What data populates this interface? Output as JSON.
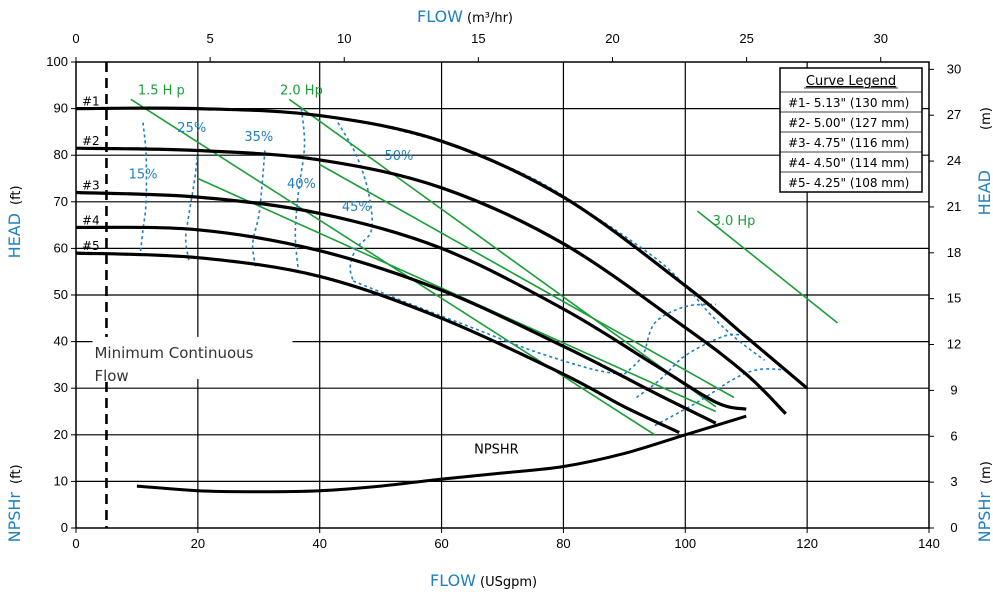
{
  "chart_data": {
    "type": "line",
    "x_top": {
      "title": "FLOW",
      "unit": "(m³/hr)",
      "ticks": [
        "0",
        "5",
        "10",
        "15",
        "20",
        "25",
        "30"
      ],
      "range": [
        0,
        31.8
      ]
    },
    "x_bottom": {
      "title": "FLOW",
      "unit": "(USgpm)",
      "ticks": [
        "0",
        "20",
        "40",
        "60",
        "80",
        "100",
        "120",
        "140"
      ],
      "range": [
        0,
        140
      ]
    },
    "y_left": {
      "title_head": "HEAD",
      "unit_head": "(ft)",
      "title_npsh": "NPSHr",
      "unit_npsh": "(ft)",
      "ticks": [
        "0",
        "10",
        "20",
        "30",
        "40",
        "50",
        "60",
        "70",
        "80",
        "90",
        "100"
      ],
      "range": [
        0,
        100
      ]
    },
    "y_right": {
      "title_head": "HEAD",
      "unit_head": "(m)",
      "title_npsh": "NPSHr",
      "unit_npsh": "(m)",
      "ticks": [
        "0",
        "3",
        "6",
        "9",
        "12",
        "15",
        "18",
        "21",
        "24",
        "27",
        "30"
      ],
      "range": [
        0,
        30.48
      ]
    },
    "grid": "major",
    "legend_title": "Curve Legend",
    "legend_items": [
      "#1- 5.13\"  (130 mm)",
      "#2- 5.00\"  (127 mm)",
      "#3- 4.75\"  (116 mm)",
      "#4- 4.50\"  (114 mm)",
      "#5- 4.25\"  (108 mm)"
    ],
    "legend_placement": "top-right",
    "impeller_series": [
      {
        "name": "#1",
        "points": [
          [
            0,
            90
          ],
          [
            20,
            90
          ],
          [
            40,
            88.5
          ],
          [
            60,
            83
          ],
          [
            80,
            71
          ],
          [
            100,
            52
          ],
          [
            110,
            41
          ],
          [
            120,
            30
          ]
        ]
      },
      {
        "name": "#2",
        "points": [
          [
            0,
            81.5
          ],
          [
            20,
            81
          ],
          [
            40,
            79
          ],
          [
            60,
            73
          ],
          [
            80,
            61
          ],
          [
            100,
            43
          ],
          [
            110,
            33
          ],
          [
            116.5,
            24.5
          ]
        ]
      },
      {
        "name": "#3",
        "points": [
          [
            0,
            72
          ],
          [
            20,
            71
          ],
          [
            40,
            67.5
          ],
          [
            60,
            60
          ],
          [
            80,
            47
          ],
          [
            95,
            35
          ],
          [
            105,
            27
          ],
          [
            110,
            25.5
          ]
        ]
      },
      {
        "name": "#4",
        "points": [
          [
            0,
            64.5
          ],
          [
            20,
            64
          ],
          [
            40,
            59.5
          ],
          [
            60,
            51
          ],
          [
            80,
            39
          ],
          [
            95,
            29
          ],
          [
            105,
            22.5
          ]
        ]
      },
      {
        "name": "#5",
        "points": [
          [
            0,
            59
          ],
          [
            20,
            58
          ],
          [
            40,
            54
          ],
          [
            60,
            45
          ],
          [
            80,
            33
          ],
          [
            90,
            26
          ],
          [
            99,
            20.5
          ]
        ]
      }
    ],
    "npshr_series": {
      "name": "NPSHR",
      "points": [
        [
          10,
          9
        ],
        [
          20,
          8
        ],
        [
          30,
          7.8
        ],
        [
          40,
          8
        ],
        [
          50,
          9
        ],
        [
          60,
          10.5
        ],
        [
          70,
          11.8
        ],
        [
          80,
          13.2
        ],
        [
          90,
          16
        ],
        [
          100,
          20
        ],
        [
          110,
          24
        ]
      ]
    },
    "efficiency_series": [
      {
        "name": "15%",
        "points": [
          [
            11,
            87
          ],
          [
            11.5,
            80
          ],
          [
            11.5,
            70
          ],
          [
            11,
            64
          ],
          [
            10.5,
            58.5
          ]
        ]
      },
      {
        "name": "25%",
        "points": [
          [
            20,
            81
          ],
          [
            19.5,
            75
          ],
          [
            18.5,
            67
          ],
          [
            18,
            62
          ],
          [
            18.5,
            57.5
          ]
        ]
      },
      {
        "name": "35%",
        "points": [
          [
            31,
            81
          ],
          [
            30.5,
            73
          ],
          [
            30,
            67
          ],
          [
            29,
            61
          ],
          [
            29.5,
            56
          ]
        ]
      },
      {
        "name": "40%",
        "points": [
          [
            37,
            90
          ],
          [
            37.5,
            82
          ],
          [
            36.5,
            72
          ],
          [
            36,
            63
          ],
          [
            36.5,
            55
          ]
        ]
      },
      {
        "name": "45%",
        "points": [
          [
            43,
            87
          ],
          [
            46,
            80
          ],
          [
            48,
            72
          ],
          [
            48.5,
            64
          ],
          [
            46,
            60
          ],
          [
            45,
            56
          ],
          [
            45.5,
            53
          ]
        ]
      },
      {
        "name": "50%",
        "points": [
          [
            51,
            86
          ],
          [
            62,
            82
          ],
          [
            75,
            75
          ],
          [
            85,
            67
          ],
          [
            95,
            58
          ],
          [
            100,
            52
          ],
          [
            104,
            46
          ],
          [
            108,
            41
          ],
          [
            113,
            36
          ]
        ]
      },
      {
        "name": "50%-lower",
        "points": [
          [
            45.5,
            53
          ],
          [
            55,
            48
          ],
          [
            65,
            43
          ],
          [
            75,
            38
          ],
          [
            85,
            34
          ],
          [
            90,
            33
          ]
        ]
      },
      {
        "name": "45%-right",
        "points": [
          [
            90,
            33
          ],
          [
            93,
            37
          ],
          [
            95,
            44
          ],
          [
            100,
            47.5
          ],
          [
            105,
            48
          ]
        ]
      },
      {
        "name": "40%-right",
        "points": [
          [
            92,
            28
          ],
          [
            96,
            32
          ],
          [
            100,
            37
          ],
          [
            106,
            41
          ],
          [
            109,
            41.5
          ]
        ]
      },
      {
        "name": "35%-right",
        "points": [
          [
            95,
            22
          ],
          [
            102,
            27
          ],
          [
            108,
            32
          ],
          [
            112,
            34
          ],
          [
            116,
            34
          ]
        ]
      }
    ],
    "hp_series": [
      {
        "name": "1.5 H p",
        "points": [
          [
            9,
            92
          ],
          [
            95,
            20
          ]
        ]
      },
      {
        "name": "2.0 Hp",
        "points": [
          [
            35,
            92
          ],
          [
            105,
            26
          ]
        ]
      },
      {
        "name": "3.0 Hp",
        "points": [
          [
            102,
            68
          ],
          [
            125,
            44
          ]
        ]
      }
    ],
    "hp_extra_lines": [
      {
        "name": "1.5 mid",
        "points": [
          [
            20,
            75
          ],
          [
            105,
            25
          ]
        ]
      },
      {
        "name": "2.0 mid",
        "points": [
          [
            40,
            78
          ],
          [
            108,
            28
          ]
        ]
      }
    ],
    "min_flow_line": {
      "x": 5,
      "label_line1": "Minimum Continuous",
      "label_line2": "Flow"
    },
    "npshr_label": "NPSHR",
    "eff_labels": [
      {
        "text": "15%",
        "x": 11,
        "y": 75
      },
      {
        "text": "25%",
        "x": 19,
        "y": 85
      },
      {
        "text": "35%",
        "x": 30,
        "y": 83
      },
      {
        "text": "40%",
        "x": 37,
        "y": 73
      },
      {
        "text": "45%",
        "x": 46,
        "y": 68
      },
      {
        "text": "50%",
        "x": 53,
        "y": 79
      }
    ],
    "hp_labels": [
      {
        "text": "1.5 H p",
        "x": 14,
        "y": 93
      },
      {
        "text": "2.0 Hp",
        "x": 37,
        "y": 93
      },
      {
        "text": "3.0 Hp",
        "x": 108,
        "y": 65
      }
    ],
    "curve_labels": [
      {
        "text": "#1",
        "y": 90
      },
      {
        "text": "#2",
        "y": 81.5
      },
      {
        "text": "#3",
        "y": 72
      },
      {
        "text": "#4",
        "y": 64.5
      },
      {
        "text": "#5",
        "y": 59
      }
    ],
    "colors": {
      "impeller": "#000000",
      "efficiency": "#1f7fc0",
      "hp": "#1a9e3a",
      "axis_title": "#1f7fc0"
    }
  }
}
